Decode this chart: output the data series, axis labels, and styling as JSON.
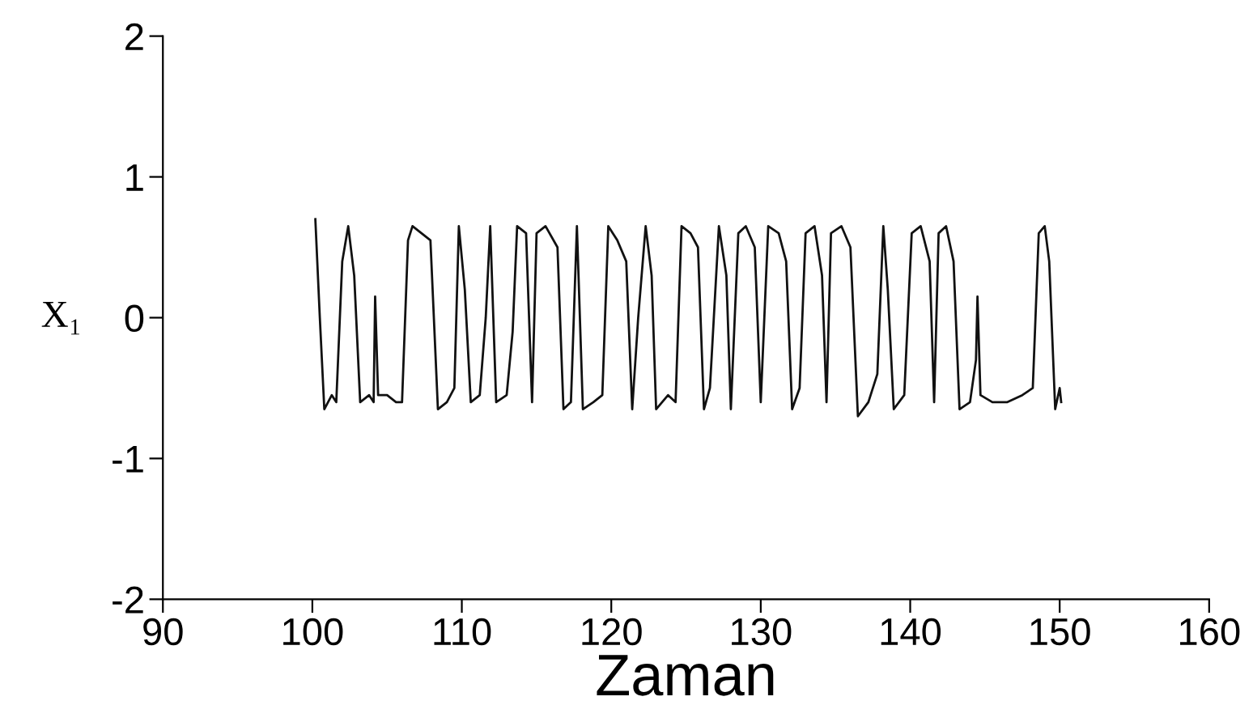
{
  "chart_data": {
    "type": "line",
    "xlabel": "Zaman",
    "ylabel": "X₁",
    "xlim": [
      90,
      160
    ],
    "xticks": [
      90,
      100,
      110,
      120,
      130,
      140,
      150,
      160
    ],
    "ylim": [
      -2,
      2
    ],
    "yticks": [
      -2,
      -1,
      0,
      1,
      2
    ],
    "grid": false,
    "legend": false,
    "marker": "none",
    "line_style": "solid",
    "series": [
      {
        "color": "#111111",
        "x": [
          100.2,
          100.5,
          100.8,
          101.3,
          101.6,
          102.0,
          102.4,
          102.8,
          103.2,
          103.8,
          104.1,
          104.2,
          104.4,
          105.0,
          105.6,
          106.0,
          106.4,
          106.7,
          107.3,
          107.9,
          108.4,
          109.0,
          109.5,
          109.8,
          110.2,
          110.6,
          111.2,
          111.6,
          111.9,
          112.3,
          113.0,
          113.4,
          113.7,
          114.3,
          114.7,
          115.0,
          115.6,
          116.4,
          116.8,
          117.3,
          117.7,
          118.1,
          118.8,
          119.4,
          119.8,
          120.4,
          121.0,
          121.4,
          121.8,
          122.3,
          122.7,
          123.0,
          123.8,
          124.3,
          124.7,
          125.3,
          125.8,
          126.2,
          126.6,
          127.2,
          127.7,
          128.0,
          128.5,
          129.0,
          129.6,
          130.0,
          130.5,
          131.2,
          131.7,
          132.1,
          132.6,
          133.0,
          133.6,
          134.1,
          134.4,
          134.7,
          135.4,
          136.0,
          136.5,
          137.2,
          137.8,
          138.2,
          138.5,
          138.9,
          139.6,
          140.1,
          140.7,
          141.3,
          141.6,
          141.9,
          142.4,
          142.9,
          143.3,
          144.0,
          144.4,
          144.5,
          144.7,
          145.5,
          146.5,
          147.5,
          148.2,
          148.6,
          149.0,
          149.3,
          149.7,
          150.0,
          150.1
        ],
        "values": [
          0.7,
          0.0,
          -0.65,
          -0.55,
          -0.6,
          0.4,
          0.65,
          0.3,
          -0.6,
          -0.55,
          -0.6,
          0.15,
          -0.55,
          -0.55,
          -0.6,
          -0.6,
          0.55,
          0.65,
          0.6,
          0.55,
          -0.65,
          -0.6,
          -0.5,
          0.65,
          0.2,
          -0.6,
          -0.55,
          0.0,
          0.65,
          -0.6,
          -0.55,
          -0.1,
          0.65,
          0.6,
          -0.6,
          0.6,
          0.65,
          0.5,
          -0.65,
          -0.6,
          0.65,
          -0.65,
          -0.6,
          -0.55,
          0.65,
          0.55,
          0.4,
          -0.65,
          0.0,
          0.65,
          0.3,
          -0.65,
          -0.55,
          -0.6,
          0.65,
          0.6,
          0.5,
          -0.65,
          -0.5,
          0.65,
          0.3,
          -0.65,
          0.6,
          0.65,
          0.5,
          -0.6,
          0.65,
          0.6,
          0.4,
          -0.65,
          -0.5,
          0.6,
          0.65,
          0.3,
          -0.6,
          0.6,
          0.65,
          0.5,
          -0.7,
          -0.6,
          -0.4,
          0.65,
          0.2,
          -0.65,
          -0.55,
          0.6,
          0.65,
          0.4,
          -0.6,
          0.6,
          0.65,
          0.4,
          -0.65,
          -0.6,
          -0.3,
          0.15,
          -0.55,
          -0.6,
          -0.6,
          -0.55,
          -0.5,
          0.6,
          0.65,
          0.4,
          -0.65,
          -0.5,
          -0.6
        ]
      }
    ]
  }
}
